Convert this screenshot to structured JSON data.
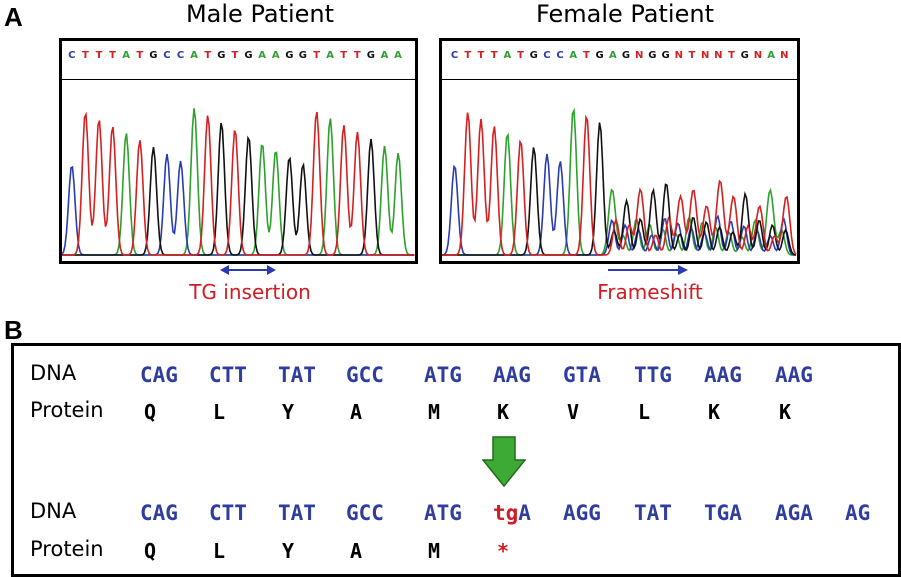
{
  "panel_a": {
    "letter": "A",
    "male": {
      "title": "Male Patient",
      "sequence": "CTTTATGCCATGTGAAGGTATTGAA",
      "annotation": "TG insertion"
    },
    "female": {
      "title": "Female Patient",
      "sequence": "CTTTATGCCATGAGNGGNTNNTGNAN",
      "annotation": "Frameshift"
    },
    "base_colors": {
      "A": "#2ea02e",
      "C": "#2b3bb0",
      "G": "#111111",
      "T": "#d42020",
      "N": "#d42020"
    },
    "arrow_color": "#2b3bb0"
  },
  "panel_b": {
    "letter": "B",
    "wild_type": {
      "dna_label": "DNA",
      "protein_label": "Protein",
      "codons": [
        "CAG",
        "CTT",
        "TAT",
        "GCC",
        "ATG",
        "AAG",
        "GTA",
        "TTG",
        "AAG",
        "AAG"
      ],
      "amino_acids": [
        "Q",
        "L",
        "Y",
        "A",
        "M",
        "K",
        "V",
        "L",
        "K",
        "K"
      ]
    },
    "mutant": {
      "dna_label": "DNA",
      "protein_label": "Protein",
      "codons": [
        "CAG",
        "CTT",
        "TAT",
        "GCC",
        "ATG",
        "tgA",
        "AGG",
        "TAT",
        "TGA",
        "AGA",
        "AG"
      ],
      "inserted_bases": "tg",
      "stop_codon_rest": "A",
      "amino_acids": [
        "Q",
        "L",
        "Y",
        "A",
        "M",
        "*"
      ]
    },
    "arrow_color": "#3daa35",
    "codon_color": "#2f3d9e",
    "highlight_color": "#d01c24"
  }
}
